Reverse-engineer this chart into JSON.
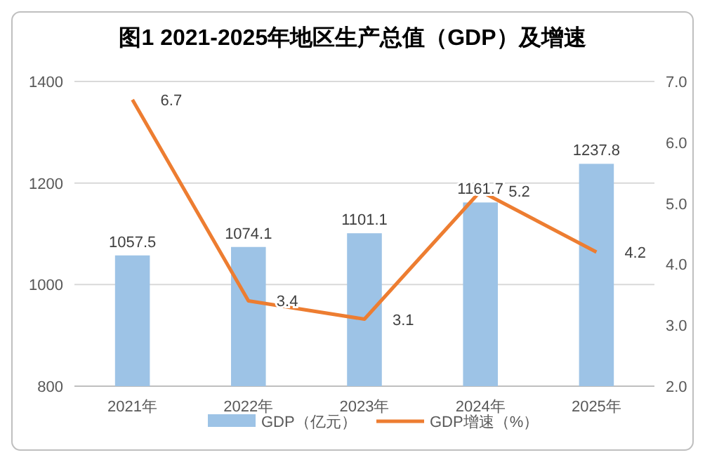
{
  "chart_data": {
    "type": "bar",
    "title": "图1  2021-2025年地区生产总值（GDP）及增速",
    "categories": [
      "2021年",
      "2022年",
      "2023年",
      "2024年",
      "2025年"
    ],
    "series": [
      {
        "name": "GDP（亿元）",
        "color": "#9dc3e6",
        "values": [
          1057.5,
          1074.1,
          1101.1,
          1161.7,
          1237.8
        ]
      },
      {
        "name": "GDP增速（%）",
        "type": "line",
        "axis": "y2",
        "color": "#ed7d31",
        "values": [
          6.7,
          3.4,
          3.1,
          5.2,
          4.2
        ]
      }
    ],
    "ylim": [
      800,
      1400
    ],
    "yticks": [
      800,
      1000,
      1200,
      1400
    ],
    "y2lim": [
      2,
      7
    ],
    "y2ticks": [
      {
        "value": 2,
        "label": "2.0"
      },
      {
        "value": 3,
        "label": "3.0"
      },
      {
        "value": 4,
        "label": "4.0"
      },
      {
        "value": 5,
        "label": "5.0"
      },
      {
        "value": 6,
        "label": "6.0"
      },
      {
        "value": 7,
        "label": "7.0"
      }
    ],
    "grid": "y",
    "legend": "bottom",
    "data_labels": true,
    "marker": "none"
  }
}
